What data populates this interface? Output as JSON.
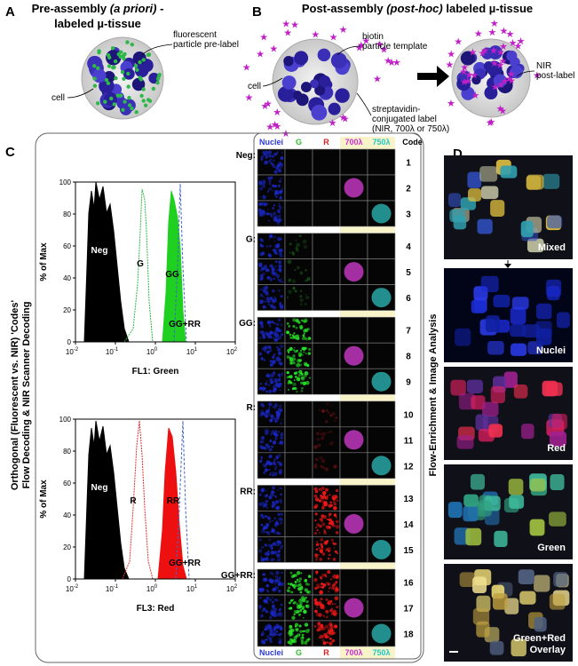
{
  "panel_a": {
    "letter": "A",
    "title_prefix": "Pre-assembly ",
    "title_italic": "(a priori)",
    "title_suffix": " -",
    "title_line2": "labeled µ-tissue",
    "label_particle": [
      "fluorescent",
      "particle pre-label"
    ],
    "label_cell": "cell"
  },
  "panel_b": {
    "letter": "B",
    "title_prefix": "Post-assembly ",
    "title_italic": "(post-hoc)",
    "title_suffix": " labeled µ-tissue",
    "label_biotin": [
      "biotin",
      "particle template"
    ],
    "label_cell": "cell",
    "label_streptavidin": [
      "streptavidin-",
      "conjugated label",
      "(NIR, 700λ or 750λ)"
    ],
    "label_nir": [
      "NIR",
      "post-label"
    ]
  },
  "panel_c": {
    "letter": "C",
    "side_label": [
      "Orthogonal (Fluorescent vs. NIR) 'Codes'",
      "Flow Decoding & NIR Scanner Decoding"
    ],
    "histograms": [
      {
        "y_label": "% of Max",
        "yticks": [
          "0",
          "20",
          "40",
          "60",
          "80",
          "100"
        ],
        "xticks": [
          {
            "base": "10",
            "exp": "-2"
          },
          {
            "base": "10",
            "exp": "-1"
          },
          {
            "base": "10",
            "exp": "0"
          },
          {
            "base": "10",
            "exp": "1"
          },
          {
            "base": "10",
            "exp": "2"
          }
        ],
        "x_label": "FL1: Green",
        "peaks": [
          "Neg",
          "G",
          "GG",
          "GG+RR"
        ]
      },
      {
        "y_label": "% of Max",
        "yticks": [
          "0",
          "20",
          "40",
          "60",
          "80",
          "100"
        ],
        "xticks": [
          {
            "base": "10",
            "exp": "-2"
          },
          {
            "base": "10",
            "exp": "-1"
          },
          {
            "base": "10",
            "exp": "0"
          },
          {
            "base": "10",
            "exp": "1"
          },
          {
            "base": "10",
            "exp": "2"
          }
        ],
        "x_label": "FL3: Red",
        "peaks": [
          "Neg",
          "R",
          "RR",
          "GG+RR"
        ]
      }
    ],
    "grid": {
      "headers": [
        "Nuclei",
        "G",
        "R",
        "700λ",
        "750λ",
        "Code"
      ],
      "groups": [
        "Neg:",
        "G:",
        "GG:",
        "R:",
        "RR:",
        "GG+RR:"
      ],
      "codes": [
        "1",
        "2",
        "3",
        "4",
        "5",
        "6",
        "7",
        "8",
        "9",
        "10",
        "11",
        "12",
        "13",
        "14",
        "15",
        "16",
        "17",
        "18"
      ],
      "footers": [
        "Nuclei",
        "G",
        "R",
        "700λ",
        "750λ"
      ]
    }
  },
  "panel_d": {
    "letter": "D",
    "side_label": "Flow-Enrichment & Image Analysis",
    "images": [
      {
        "label": [
          "Mixed"
        ]
      },
      {
        "label": [
          "Nuclei"
        ]
      },
      {
        "label": [
          "Red"
        ]
      },
      {
        "label": [
          "Green"
        ]
      },
      {
        "label": [
          "Green+Red",
          "Overlay"
        ]
      }
    ]
  }
}
